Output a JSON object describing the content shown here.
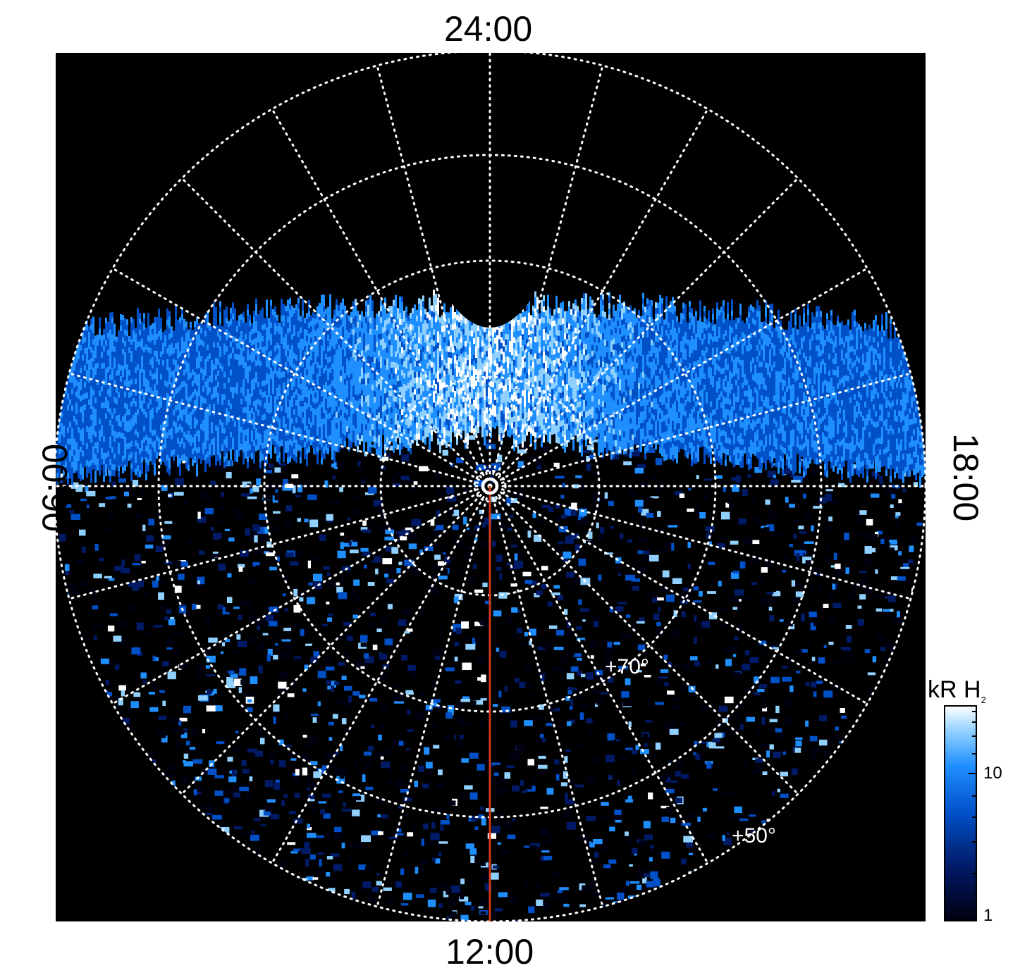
{
  "labels": {
    "top": "24:00",
    "bottom": "12:00",
    "left": "06:00",
    "right": "18:00",
    "lat_inner": "+70°",
    "lat_outer": "+50°"
  },
  "colorbar": {
    "title_main": "kR H",
    "title_sub": "2",
    "ticks": [
      "10",
      "1"
    ],
    "colors": [
      "#000010",
      "#001a66",
      "#0050c8",
      "#1f8fff",
      "#8fd0ff",
      "#ffffff"
    ]
  },
  "colors": {
    "background": "#000000",
    "grid": "#ffffff",
    "meridian": "#d23a1c"
  }
}
